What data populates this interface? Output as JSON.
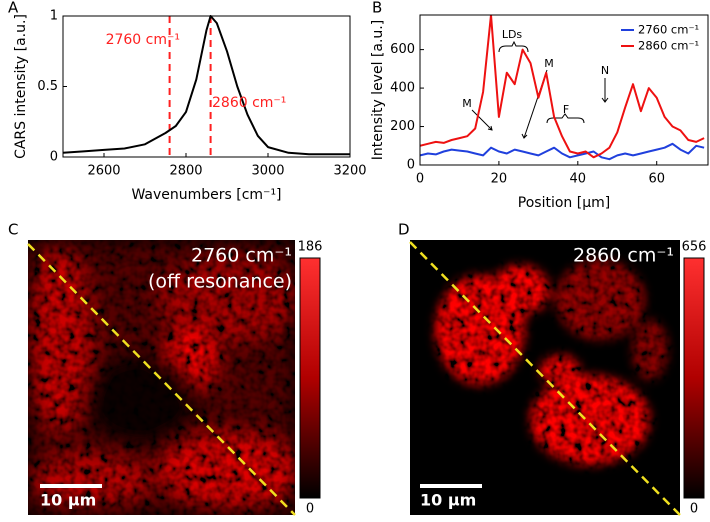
{
  "chart_data": [
    {
      "type": "line",
      "panel": "A",
      "x": [
        2500,
        2550,
        2600,
        2650,
        2700,
        2750,
        2775,
        2800,
        2825,
        2850,
        2860,
        2875,
        2900,
        2925,
        2950,
        2975,
        3000,
        3050,
        3100,
        3150,
        3200
      ],
      "values": [
        0.03,
        0.04,
        0.05,
        0.06,
        0.09,
        0.17,
        0.22,
        0.32,
        0.55,
        0.9,
        1,
        0.95,
        0.75,
        0.5,
        0.3,
        0.15,
        0.07,
        0.03,
        0.02,
        0.02,
        0.02
      ],
      "color": "#000000",
      "xlim": [
        2500,
        3200
      ],
      "ylim": [
        0,
        1
      ],
      "xticks": [
        2600,
        2800,
        3000,
        3200
      ],
      "yticks": [
        0,
        0.5,
        1
      ],
      "xlabel": "Wavenumbers [cm⁻¹]",
      "ylabel": "CARS intensity [a.u.]",
      "vlines": [
        2760,
        2860
      ],
      "vline_color": "#ff2020",
      "annotations": [
        "2760 cm⁻¹",
        "2860 cm⁻¹"
      ]
    },
    {
      "type": "line",
      "panel": "B",
      "x": [
        0,
        2,
        4,
        6,
        8,
        10,
        12,
        14,
        16,
        18,
        20,
        22,
        24,
        26,
        28,
        30,
        32,
        34,
        36,
        38,
        40,
        42,
        44,
        46,
        48,
        50,
        52,
        54,
        56,
        58,
        60,
        62,
        64,
        66,
        68,
        70,
        72
      ],
      "series": [
        {
          "name": "2760 cm⁻¹",
          "color": "#2040dd",
          "values": [
            50,
            60,
            55,
            70,
            80,
            75,
            70,
            60,
            50,
            90,
            70,
            60,
            80,
            70,
            60,
            50,
            70,
            90,
            60,
            40,
            50,
            60,
            70,
            40,
            30,
            50,
            60,
            50,
            60,
            70,
            80,
            90,
            110,
            80,
            60,
            100,
            90
          ]
        },
        {
          "name": "2860 cm⁻¹",
          "color": "#ee1111",
          "values": [
            100,
            110,
            120,
            115,
            130,
            140,
            150,
            190,
            380,
            780,
            250,
            480,
            420,
            600,
            530,
            350,
            480,
            250,
            150,
            70,
            60,
            70,
            40,
            60,
            90,
            170,
            300,
            420,
            280,
            400,
            350,
            250,
            200,
            180,
            130,
            120,
            140
          ]
        }
      ],
      "xlim": [
        0,
        73
      ],
      "ylim": [
        0,
        780
      ],
      "xticks": [
        0,
        20,
        40,
        60
      ],
      "yticks": [
        0,
        200,
        400,
        600
      ],
      "xlabel": "Position [μm]",
      "ylabel": "Intensity level [a.u.]",
      "legend": "upper right",
      "annotations": [
        "LDs",
        "M",
        "M",
        "F",
        "N"
      ]
    }
  ],
  "images": [
    {
      "panel": "C",
      "title": "2760 cm⁻¹",
      "subtitle": "(off resonance)",
      "colorbar_max": 186,
      "colorbar_min": 0,
      "scale_bar": "10 μm"
    },
    {
      "panel": "D",
      "title": "2860 cm⁻¹",
      "colorbar_max": 656,
      "colorbar_min": 0,
      "scale_bar": "10 μm"
    }
  ]
}
